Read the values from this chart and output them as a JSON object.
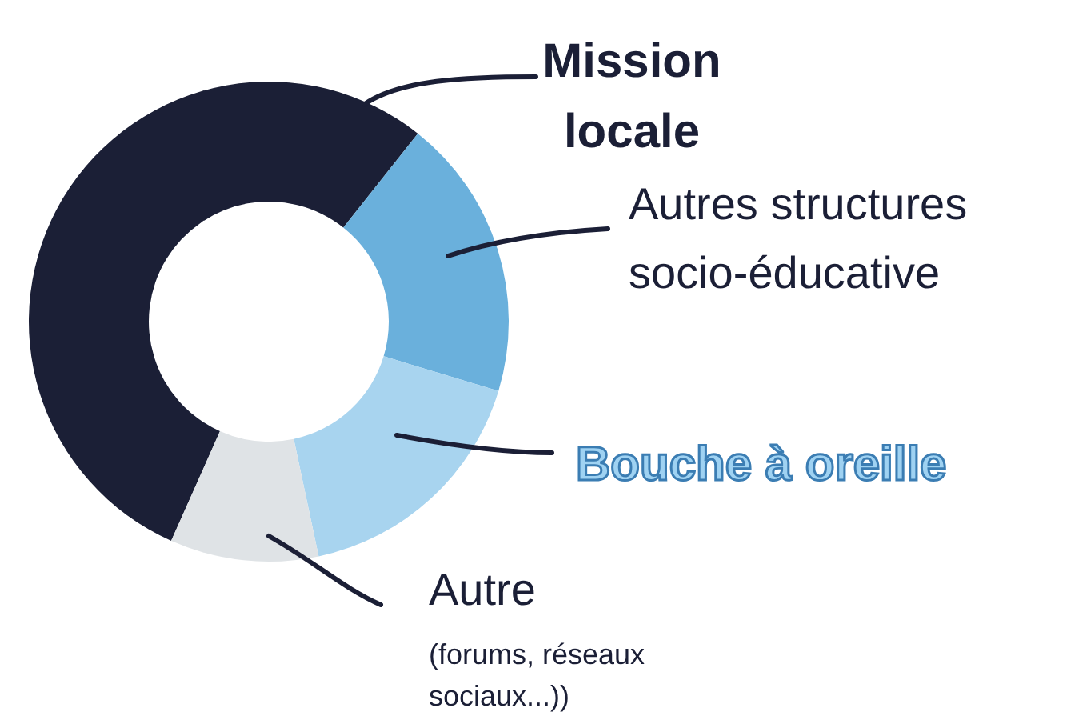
{
  "chart_data": {
    "type": "donut",
    "categories": [
      "Mission locale",
      "Autres structures socio-éducative",
      "Bouche à oreille",
      "Autre"
    ],
    "values": [
      54,
      19,
      17,
      10
    ],
    "colors": [
      "#1b1f36",
      "#6ab0dc",
      "#a8d4ef",
      "#dfe3e6"
    ],
    "legend": false,
    "annotations": [
      "(forums, réseaux sociaux...))"
    ]
  }
}
